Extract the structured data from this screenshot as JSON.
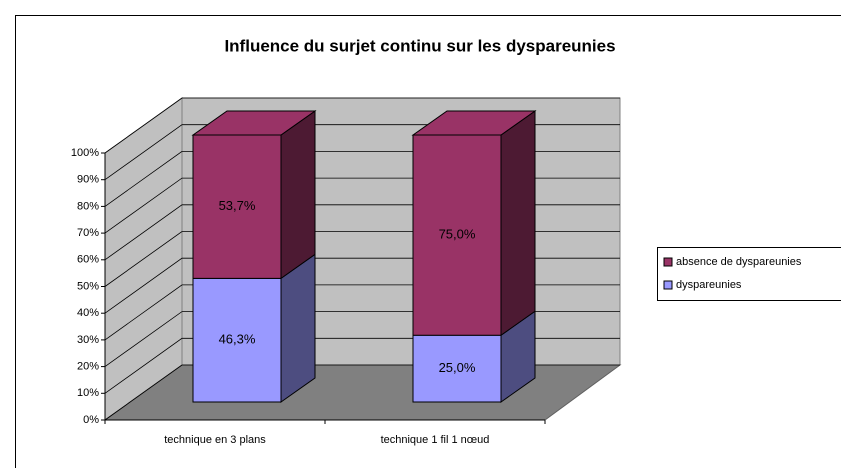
{
  "chart_data": {
    "type": "bar3d_stacked",
    "title": "Influence du surjet continu sur les dyspareunies",
    "categories": [
      "technique en 3 plans",
      "technique 1 fil 1 nœud"
    ],
    "series": [
      {
        "name": "dyspareunies",
        "color": "#9999ff",
        "values": [
          46.3,
          25.0
        ],
        "value_labels": [
          "46,3%",
          "25,0%"
        ]
      },
      {
        "name": "absence de dyspareunies",
        "color": "#993366",
        "values": [
          53.7,
          75.0
        ],
        "value_labels": [
          "53,7%",
          "75,0%"
        ]
      }
    ],
    "ylim": [
      0,
      100
    ],
    "yticks": [
      {
        "value": 0,
        "label": "0%"
      },
      {
        "value": 10,
        "label": "10%"
      },
      {
        "value": 20,
        "label": "20%"
      },
      {
        "value": 30,
        "label": "30%"
      },
      {
        "value": 40,
        "label": "40%"
      },
      {
        "value": 50,
        "label": "50%"
      },
      {
        "value": 60,
        "label": "60%"
      },
      {
        "value": 70,
        "label": "70%"
      },
      {
        "value": 80,
        "label": "80%"
      },
      {
        "value": 90,
        "label": "90%"
      },
      {
        "value": 100,
        "label": "100%"
      }
    ],
    "grid": true,
    "legend": "right"
  }
}
